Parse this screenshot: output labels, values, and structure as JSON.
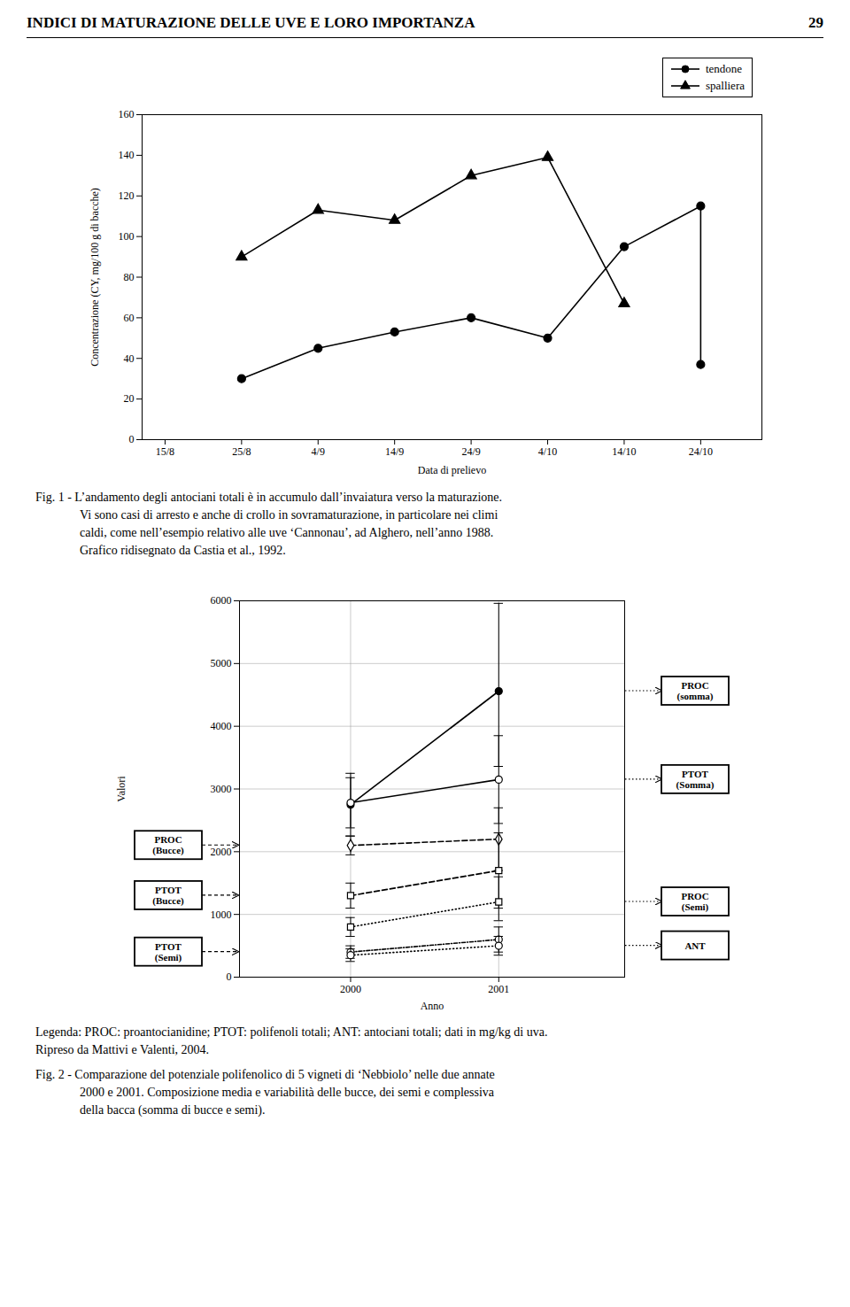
{
  "title": "INDICI DI MATURAZIONE DELLE UVE E LORO IMPORTANZA",
  "page_number": "29",
  "chart_data": [
    {
      "type": "line",
      "xlabel": "Data di prelievo",
      "ylabel": "Concentrazione (CY, mg/100 g di bacche)",
      "xlim": [
        -0.3,
        7.8
      ],
      "xticks": [
        {
          "value": 0,
          "label": "15/8"
        },
        {
          "value": 1,
          "label": "25/8"
        },
        {
          "value": 2,
          "label": "4/9"
        },
        {
          "value": 3,
          "label": "14/9"
        },
        {
          "value": 4,
          "label": "24/9"
        },
        {
          "value": 5,
          "label": "4/10"
        },
        {
          "value": 6,
          "label": "14/10"
        },
        {
          "value": 7,
          "label": "24/10"
        }
      ],
      "ylim": [
        0,
        160
      ],
      "yticks": [
        0,
        20,
        40,
        60,
        80,
        100,
        120,
        140,
        160
      ],
      "grid": false,
      "legend": "upper right",
      "series": [
        {
          "name": "tendone",
          "color": "black",
          "marker": "circle",
          "line_style": "solid",
          "x": [
            1,
            2,
            3,
            4,
            5,
            6,
            7,
            7
          ],
          "values": [
            30,
            45,
            53,
            60,
            50,
            95,
            115,
            37
          ]
        },
        {
          "name": "spalliera",
          "color": "black",
          "marker": "triangle",
          "line_style": "solid",
          "x": [
            1,
            2,
            3,
            4,
            5,
            6
          ],
          "values": [
            90,
            113,
            108,
            130,
            139,
            67
          ]
        }
      ],
      "caption": [
        "Fig. 1 - L’andamento degli antociani totali è in accumulo dall’invaiatura verso la maturazione.",
        "Vi sono casi di arresto e anche di crollo in sovramaturazione, in particolare nei climi",
        "caldi, come nell’esempio relativo alle uve ‘Cannonau’, ad Alghero, nell’anno 1988.",
        "Grafico ridisegnato da Castia et al., 1992."
      ]
    },
    {
      "type": "line",
      "xlabel": "Anno",
      "ylabel": "Valori",
      "xlim": [
        1999.25,
        2001.85
      ],
      "xticks": [
        2000,
        2001
      ],
      "ylim": [
        0,
        6000
      ],
      "yticks": [
        0,
        1000,
        2000,
        3000,
        4000,
        5000,
        6000
      ],
      "grid": true,
      "series": [
        {
          "name": "PROC\n(somma)",
          "color": "black",
          "marker": "circle",
          "line_style": "solid",
          "x": [
            2000,
            2001
          ],
          "values": [
            2750,
            4560
          ],
          "yerr_low": [
            500,
            1200
          ],
          "yerr_high": [
            500,
            1400
          ]
        },
        {
          "name": "PTOT\n(Somma)",
          "color": "black",
          "marker": "circle_open",
          "line_style": "solid",
          "x": [
            2000,
            2001
          ],
          "values": [
            2780,
            3150
          ],
          "yerr_low": [
            400,
            700
          ],
          "yerr_high": [
            400,
            700
          ]
        },
        {
          "name": "PROC\n(Bucce)",
          "color": "black",
          "marker": "diamond_open",
          "line_style": "dashed",
          "x": [
            2000,
            2001
          ],
          "values": [
            2100,
            2200
          ],
          "yerr_low": [
            150,
            500
          ],
          "yerr_high": [
            150,
            500
          ]
        },
        {
          "name": "PTOT\n(Bucce)",
          "color": "black",
          "marker": "square_open",
          "line_style": "dashed",
          "x": [
            2000,
            2001
          ],
          "values": [
            1300,
            1700
          ],
          "yerr_low": [
            200,
            600
          ],
          "yerr_high": [
            200,
            600
          ]
        },
        {
          "name": "PROC\n(Semi)",
          "color": "black",
          "marker": "square_open",
          "line_style": "dotted",
          "x": [
            2000,
            2001
          ],
          "values": [
            800,
            1200
          ],
          "yerr_low": [
            150,
            300
          ],
          "yerr_high": [
            150,
            400
          ]
        },
        {
          "name": "PTOT\n(Semi)",
          "color": "black",
          "marker": "circle_open",
          "line_style": "dashdot",
          "x": [
            2000,
            2001
          ],
          "values": [
            400,
            600
          ],
          "yerr_low": [
            100,
            200
          ],
          "yerr_high": [
            100,
            200
          ]
        },
        {
          "name": "ANT",
          "color": "black",
          "marker": "circle_open",
          "line_style": "dotted",
          "x": [
            2000,
            2001
          ],
          "values": [
            350,
            500
          ],
          "yerr_low": [
            100,
            150
          ],
          "yerr_high": [
            100,
            150
          ]
        }
      ],
      "notes": [
        "Legenda: PROC: proantocianidine; PTOT: polifenoli totali; ANT: antociani totali; dati in mg/kg di uva.",
        "Ripreso da Mattivi e Valenti, 2004."
      ],
      "caption": [
        "Fig. 2 - Comparazione del potenziale polifenolico di 5 vigneti di ‘Nebbiolo’ nelle due annate",
        "2000 e 2001. Composizione media e variabilità delle bucce, dei semi e complessiva",
        "della bacca (somma di bucce e semi)."
      ]
    }
  ]
}
